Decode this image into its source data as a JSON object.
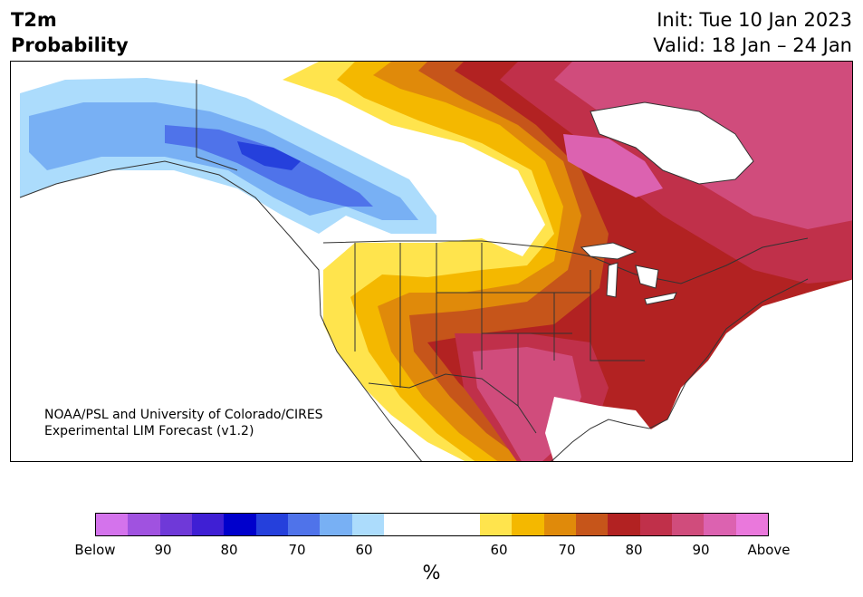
{
  "header": {
    "title_line1": "T2m",
    "title_line2": "Probability",
    "init": "Init: Tue 10 Jan 2023",
    "valid": "Valid: 18 Jan – 24 Jan"
  },
  "credit": {
    "line1": "NOAA/PSL and University of Colorado/CIRES",
    "line2": "Experimental LIM Forecast (v1.2)"
  },
  "colorbar": {
    "below_colors": [
      "#d473ec",
      "#a052e0",
      "#6f39d8",
      "#3f1fd4",
      "#0000cc",
      "#2540dc",
      "#4f73ea",
      "#78b0f4",
      "#acdcfc"
    ],
    "above_colors": [
      "#ffe44d",
      "#f4b800",
      "#e08a0a",
      "#c6551a",
      "#b22222",
      "#c0304a",
      "#d04c7c",
      "#dc62b0",
      "#ea78dc"
    ],
    "tick_labels": [
      "Below",
      "90",
      "80",
      "70",
      "60",
      "60",
      "70",
      "80",
      "90",
      "Above"
    ],
    "unit": "%"
  },
  "map": {
    "land_color": "#ffffff",
    "border_color": "#333333"
  }
}
